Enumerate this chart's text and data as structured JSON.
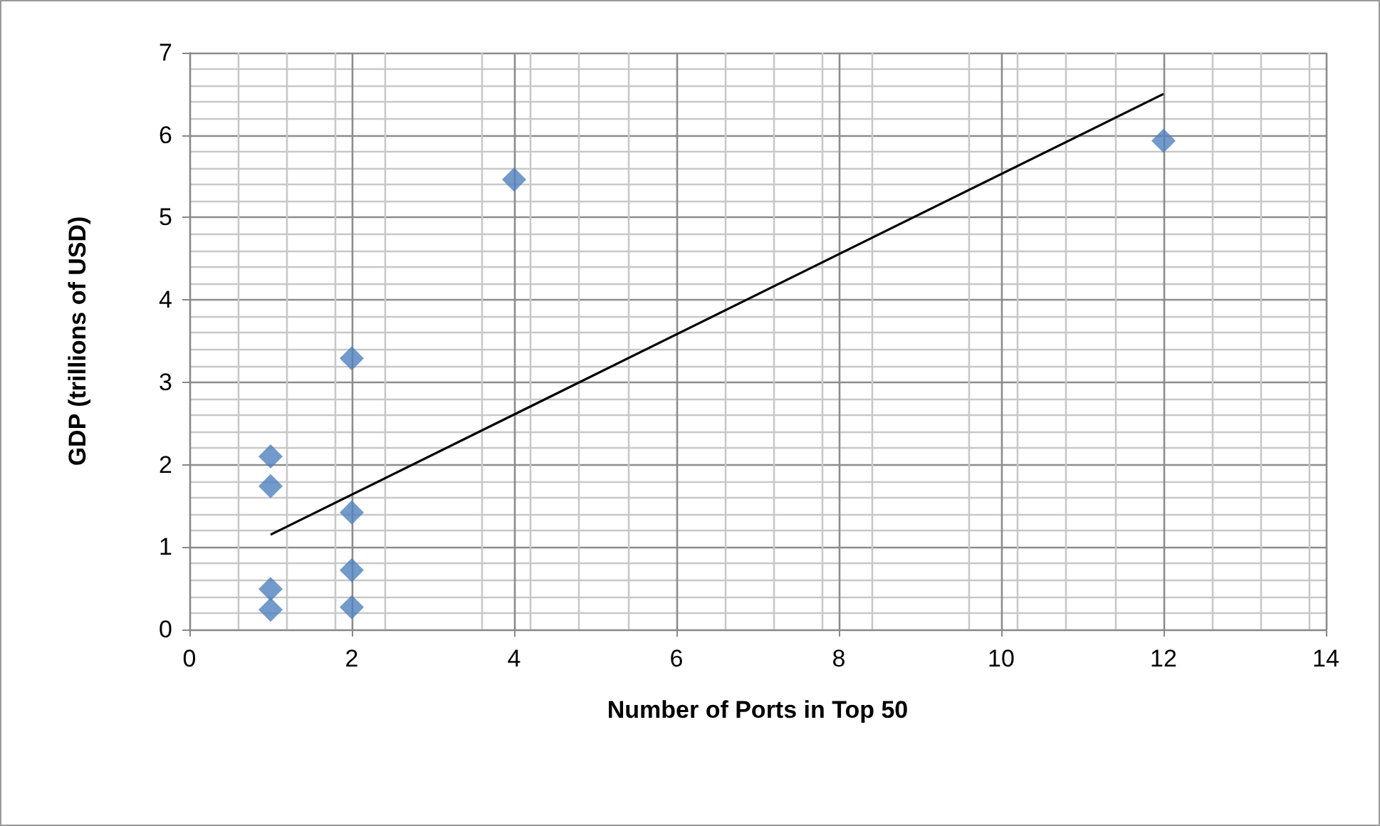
{
  "chart_data": {
    "type": "scatter",
    "xlabel": "Number of Ports in Top 50",
    "ylabel": "GDP (trillions of USD)",
    "series": [
      {
        "type": "scatter",
        "color": "#4f81bd",
        "marker": "diamond",
        "x": [
          1,
          1,
          1,
          1,
          2,
          2,
          2,
          2,
          4,
          12
        ],
        "values": [
          2.1,
          1.74,
          0.49,
          0.24,
          3.29,
          1.42,
          0.72,
          0.27,
          5.46,
          5.93
        ]
      },
      {
        "type": "line",
        "color": "#000000",
        "marker": "none",
        "x": [
          1,
          12
        ],
        "values": [
          1.15,
          6.5
        ]
      }
    ],
    "xlim": [
      0,
      14
    ],
    "xticks": [
      0,
      2,
      4,
      6,
      8,
      10,
      12,
      14
    ],
    "ylim": [
      0,
      7
    ],
    "yticks": [
      0,
      1,
      2,
      3,
      4,
      5,
      6,
      7
    ],
    "grid": true
  }
}
